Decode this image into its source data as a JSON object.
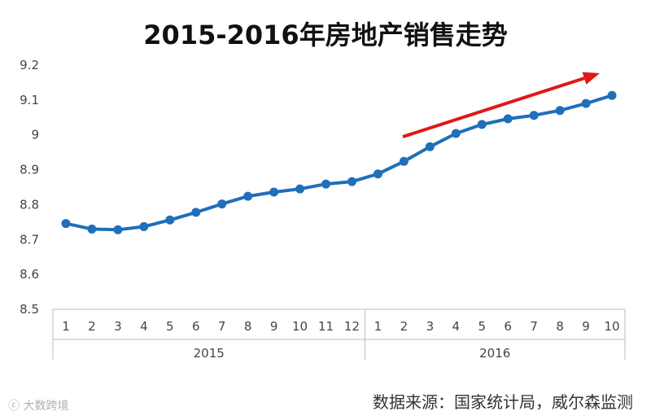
{
  "title": "2015-2016年房地产销售走势",
  "source": "数据来源：国家统计局，威尔森监测",
  "watermark": "ⓒ 大数跨境",
  "chart_data": {
    "type": "line",
    "ylim": [
      8.5,
      9.2
    ],
    "yticks": [
      "8.5",
      "8.6",
      "8.7",
      "8.8",
      "8.9",
      "9",
      "9.1",
      "9.2"
    ],
    "grid": false,
    "categories": [
      "1",
      "2",
      "3",
      "4",
      "5",
      "6",
      "7",
      "8",
      "9",
      "10",
      "11",
      "12",
      "1",
      "2",
      "3",
      "4",
      "5",
      "6",
      "7",
      "8",
      "9",
      "10"
    ],
    "groups": [
      {
        "label": "2015",
        "count": 12
      },
      {
        "label": "2016",
        "count": 10
      }
    ],
    "series": [
      {
        "color": "#1f6fba",
        "values": [
          8.746,
          8.73,
          8.728,
          8.737,
          8.756,
          8.778,
          8.802,
          8.824,
          8.836,
          8.845,
          8.859,
          8.866,
          8.888,
          8.924,
          8.966,
          9.004,
          9.03,
          9.046,
          9.056,
          9.07,
          9.09,
          9.113
        ]
      }
    ],
    "annotation": {
      "type": "trend-arrow",
      "color": "#e01818"
    }
  }
}
